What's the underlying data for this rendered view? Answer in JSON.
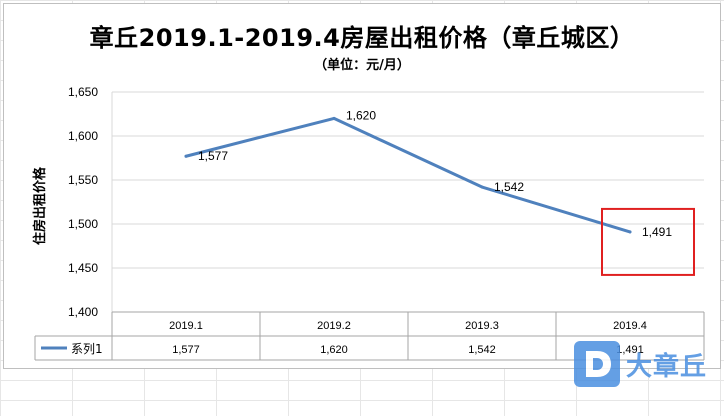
{
  "title": "章丘2019.1-2019.4房屋出租价格（章丘城区）",
  "subtitle": "（单位：元/月）",
  "watermark": {
    "text": "大章丘",
    "logo_icon": "d-logo-icon",
    "color": "#4a8fe0"
  },
  "colors": {
    "line": "#4f81bd",
    "grid": "#d9d9d9",
    "highlight": "#e02020"
  },
  "chart_data": {
    "type": "line",
    "title": "章丘2019.1-2019.4房屋出租价格（章丘城区）",
    "subtitle": "（单位：元/月）",
    "xlabel": "",
    "ylabel": "住房出租价格",
    "categories": [
      "2019.1",
      "2019.2",
      "2019.3",
      "2019.4"
    ],
    "series": [
      {
        "name": "系列1",
        "values": [
          1577,
          1620,
          1542,
          1491
        ],
        "labels": [
          "1,577",
          "1,620",
          "1,542",
          "1,491"
        ]
      }
    ],
    "ylim": [
      1400,
      1650
    ],
    "yticks": [
      1400,
      1450,
      1500,
      1550,
      1600,
      1650
    ],
    "ytick_labels": [
      "1,400",
      "1,450",
      "1,500",
      "1,550",
      "1,600",
      "1,650"
    ],
    "grid": true,
    "data_table": true,
    "highlight_category": "2019.4"
  }
}
